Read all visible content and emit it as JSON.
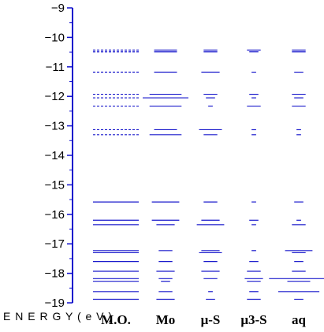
{
  "chart_data": {
    "type": "energy-level-diagram",
    "ylabel": "E N E R G Y ( e V )",
    "ylim": [
      -19,
      -9
    ],
    "yticks": [
      -9,
      -10,
      -11,
      -12,
      -13,
      -14,
      -15,
      -16,
      -17,
      -18,
      -19
    ],
    "ytick_labels": [
      "−9",
      "−10",
      "−11",
      "−12",
      "−13",
      "−14",
      "−15",
      "−16",
      "−17",
      "−18",
      "−19"
    ],
    "columns": [
      {
        "label": "M.O.",
        "levels": [
          {
            "e": -10.43,
            "weight": 1.0,
            "dashed": true
          },
          {
            "e": -10.49,
            "weight": 1.0,
            "dashed": true
          },
          {
            "e": -11.18,
            "weight": 1.0,
            "dashed": true
          },
          {
            "e": -11.93,
            "weight": 1.0,
            "dashed": true
          },
          {
            "e": -12.05,
            "weight": 1.0,
            "dashed": true
          },
          {
            "e": -12.33,
            "weight": 1.0,
            "dashed": true
          },
          {
            "e": -13.13,
            "weight": 1.0,
            "dashed": true
          },
          {
            "e": -13.3,
            "weight": 1.0,
            "dashed": true
          },
          {
            "e": -15.58,
            "weight": 1.0,
            "dashed": false
          },
          {
            "e": -16.2,
            "weight": 1.0,
            "dashed": false
          },
          {
            "e": -16.35,
            "weight": 1.0,
            "dashed": false
          },
          {
            "e": -17.23,
            "weight": 1.0,
            "dashed": false
          },
          {
            "e": -17.3,
            "weight": 1.0,
            "dashed": false
          },
          {
            "e": -17.6,
            "weight": 1.0,
            "dashed": false
          },
          {
            "e": -17.93,
            "weight": 1.0,
            "dashed": false
          },
          {
            "e": -18.18,
            "weight": 1.0,
            "dashed": false
          },
          {
            "e": -18.27,
            "weight": 1.0,
            "dashed": false
          },
          {
            "e": -18.62,
            "weight": 1.0,
            "dashed": false
          },
          {
            "e": -18.88,
            "weight": 1.0,
            "dashed": false
          }
        ]
      },
      {
        "label": "Mo",
        "levels": [
          {
            "e": -10.43,
            "weight": 0.5
          },
          {
            "e": -10.49,
            "weight": 0.5
          },
          {
            "e": -11.18,
            "weight": 0.5
          },
          {
            "e": -11.93,
            "weight": 0.7
          },
          {
            "e": -12.05,
            "weight": 1.0
          },
          {
            "e": -12.33,
            "weight": 0.7
          },
          {
            "e": -13.13,
            "weight": 0.5
          },
          {
            "e": -13.3,
            "weight": 0.7
          },
          {
            "e": -15.58,
            "weight": 0.6
          },
          {
            "e": -16.2,
            "weight": 0.6
          },
          {
            "e": -16.35,
            "weight": 0.4
          },
          {
            "e": -17.23,
            "weight": 0.3
          },
          {
            "e": -17.6,
            "weight": 0.3
          },
          {
            "e": -17.93,
            "weight": 0.4
          },
          {
            "e": -18.18,
            "weight": 0.3
          },
          {
            "e": -18.27,
            "weight": 0.2
          },
          {
            "e": -18.62,
            "weight": 0.3
          },
          {
            "e": -18.88,
            "weight": 0.4
          }
        ]
      },
      {
        "label": "μ-S",
        "levels": [
          {
            "e": -10.43,
            "weight": 0.3
          },
          {
            "e": -10.49,
            "weight": 0.3
          },
          {
            "e": -11.18,
            "weight": 0.4
          },
          {
            "e": -11.93,
            "weight": 0.3
          },
          {
            "e": -12.05,
            "weight": 0.2
          },
          {
            "e": -12.33,
            "weight": 0.1
          },
          {
            "e": -13.13,
            "weight": 0.5
          },
          {
            "e": -13.3,
            "weight": 0.3
          },
          {
            "e": -15.58,
            "weight": 0.3
          },
          {
            "e": -16.2,
            "weight": 0.4
          },
          {
            "e": -16.35,
            "weight": 0.6
          },
          {
            "e": -17.23,
            "weight": 0.4
          },
          {
            "e": -17.3,
            "weight": 0.5
          },
          {
            "e": -17.6,
            "weight": 0.3
          },
          {
            "e": -17.93,
            "weight": 0.4
          },
          {
            "e": -18.18,
            "weight": 0.3
          },
          {
            "e": -18.62,
            "weight": 0.1
          },
          {
            "e": -18.88,
            "weight": 0.2
          }
        ]
      },
      {
        "label": "μ3-S",
        "levels": [
          {
            "e": -10.43,
            "weight": 0.3
          },
          {
            "e": -10.49,
            "weight": 0.2
          },
          {
            "e": -11.18,
            "weight": 0.1
          },
          {
            "e": -11.93,
            "weight": 0.2
          },
          {
            "e": -12.05,
            "weight": 0.1
          },
          {
            "e": -12.33,
            "weight": 0.3
          },
          {
            "e": -13.13,
            "weight": 0.1
          },
          {
            "e": -13.3,
            "weight": 0.1
          },
          {
            "e": -15.58,
            "weight": 0.1
          },
          {
            "e": -16.2,
            "weight": 0.2
          },
          {
            "e": -16.35,
            "weight": 0.1
          },
          {
            "e": -17.23,
            "weight": 0.1
          },
          {
            "e": -17.6,
            "weight": 0.2
          },
          {
            "e": -17.93,
            "weight": 0.3
          },
          {
            "e": -18.18,
            "weight": 0.4
          },
          {
            "e": -18.27,
            "weight": 0.3
          },
          {
            "e": -18.62,
            "weight": 0.2
          },
          {
            "e": -18.88,
            "weight": 0.3
          }
        ]
      },
      {
        "label": "aq",
        "levels": [
          {
            "e": -10.43,
            "weight": 0.3
          },
          {
            "e": -10.49,
            "weight": 0.3
          },
          {
            "e": -11.18,
            "weight": 0.2
          },
          {
            "e": -11.93,
            "weight": 0.3
          },
          {
            "e": -12.05,
            "weight": 0.2
          },
          {
            "e": -12.33,
            "weight": 0.3
          },
          {
            "e": -13.13,
            "weight": 0.1
          },
          {
            "e": -13.3,
            "weight": 0.1
          },
          {
            "e": -15.58,
            "weight": 0.2
          },
          {
            "e": -16.2,
            "weight": 0.1
          },
          {
            "e": -16.35,
            "weight": 0.3
          },
          {
            "e": -17.23,
            "weight": 0.6
          },
          {
            "e": -17.3,
            "weight": 0.3
          },
          {
            "e": -17.6,
            "weight": 0.2
          },
          {
            "e": -17.93,
            "weight": 0.3
          },
          {
            "e": -18.18,
            "weight": 1.3
          },
          {
            "e": -18.27,
            "weight": 0.5
          },
          {
            "e": -18.62,
            "weight": 0.9
          },
          {
            "e": -18.88,
            "weight": 0.2
          }
        ]
      }
    ],
    "colors": {
      "axis": "#1010cc",
      "level": "#1a1acc"
    }
  }
}
